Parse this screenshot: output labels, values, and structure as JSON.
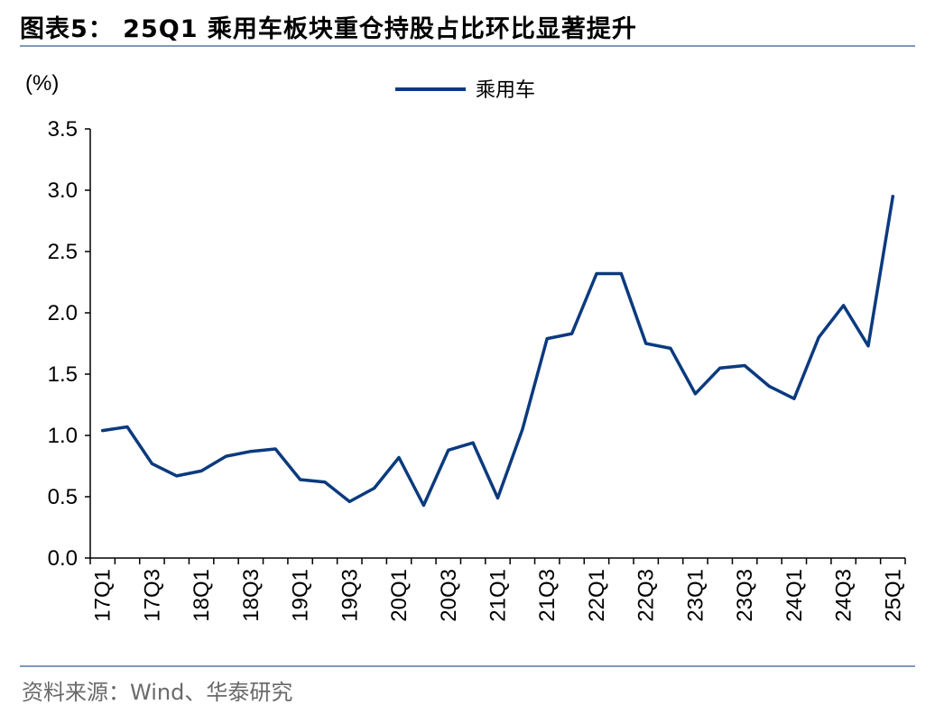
{
  "header": {
    "title": "图表5： 25Q1 乘用车板块重仓持股占比环比显著提升"
  },
  "footer": {
    "source": "资料来源：Wind、华泰研究"
  },
  "colors": {
    "series": "#0b3a7e",
    "axis": "#000000",
    "rule": "#7f99bb"
  },
  "chart_data": {
    "type": "line",
    "title": "25Q1 乘用车板块重仓持股占比环比显著提升",
    "ylabel": "(%)",
    "xlabel": "",
    "ylim": [
      0,
      3.5
    ],
    "yticks": [
      "0.0",
      "0.5",
      "1.0",
      "1.5",
      "2.0",
      "2.5",
      "3.0",
      "3.5"
    ],
    "grid": false,
    "legend": "top-center",
    "x": [
      "17Q1",
      "17Q2",
      "17Q3",
      "17Q4",
      "18Q1",
      "18Q2",
      "18Q3",
      "18Q4",
      "19Q1",
      "19Q2",
      "19Q3",
      "19Q4",
      "20Q1",
      "20Q2",
      "20Q3",
      "20Q4",
      "21Q1",
      "21Q2",
      "21Q3",
      "21Q4",
      "22Q1",
      "22Q2",
      "22Q3",
      "22Q4",
      "23Q1",
      "23Q2",
      "23Q3",
      "23Q4",
      "24Q1",
      "24Q2",
      "24Q3",
      "24Q4",
      "25Q1"
    ],
    "xtick_labels": [
      "17Q1",
      "17Q3",
      "18Q1",
      "18Q3",
      "19Q1",
      "19Q3",
      "20Q1",
      "20Q3",
      "21Q1",
      "21Q3",
      "22Q1",
      "22Q3",
      "23Q1",
      "23Q3",
      "24Q1",
      "24Q3",
      "25Q1"
    ],
    "series": [
      {
        "name": "乘用车",
        "values": [
          1.04,
          1.07,
          0.77,
          0.67,
          0.71,
          0.83,
          0.87,
          0.89,
          0.64,
          0.62,
          0.46,
          0.57,
          0.82,
          0.43,
          0.88,
          0.94,
          0.49,
          1.05,
          1.79,
          1.83,
          2.32,
          2.32,
          1.75,
          1.71,
          1.34,
          1.55,
          1.57,
          1.4,
          1.3,
          1.8,
          2.06,
          1.73,
          2.95
        ]
      }
    ]
  }
}
